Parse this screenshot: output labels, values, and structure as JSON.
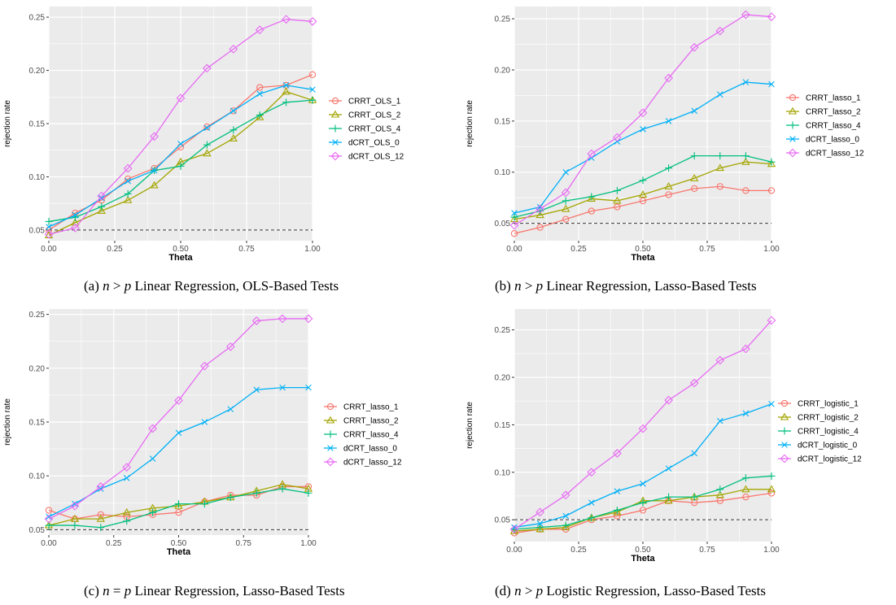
{
  "colors": {
    "panel_bg": "#EBEBEB",
    "grid": "#FFFFFF",
    "series": [
      "#F8766D",
      "#A3A500",
      "#00BF7D",
      "#00B0F6",
      "#E76BF3"
    ],
    "reference_line": "#333333"
  },
  "chart_data": [
    {
      "type": "line",
      "caption": {
        "label": "(a)",
        "n": "n",
        "rel": ">",
        "p": "p",
        "text": "Linear Regression, OLS-Based Tests"
      },
      "xlabel": "Theta",
      "ylabel": "rejection rate",
      "xlim": [
        0,
        1
      ],
      "ylim": [
        0.04,
        0.26
      ],
      "xticks": [
        0,
        0.25,
        0.5,
        0.75,
        1.0
      ],
      "xtick_labels": [
        "0.00",
        "0.25",
        "0.50",
        "0.75",
        "1.00"
      ],
      "yticks": [
        0.05,
        0.1,
        0.15,
        0.2,
        0.25
      ],
      "ytick_labels": [
        "0.05",
        "0.10",
        "0.15",
        "0.20",
        "0.25"
      ],
      "reference_line": 0.05,
      "legend_position": "right",
      "grid": true,
      "x": [
        0,
        0.1,
        0.2,
        0.3,
        0.4,
        0.5,
        0.6,
        0.7,
        0.8,
        0.9,
        1.0
      ],
      "series": [
        {
          "name": "CRRT_OLS_1",
          "marker": "circle",
          "values": [
            0.05,
            0.066,
            0.078,
            0.098,
            0.108,
            0.128,
            0.147,
            0.162,
            0.184,
            0.186,
            0.196
          ]
        },
        {
          "name": "CRRT_OLS_2",
          "marker": "triangle",
          "values": [
            0.045,
            0.057,
            0.068,
            0.078,
            0.092,
            0.114,
            0.122,
            0.136,
            0.156,
            0.18,
            0.172
          ]
        },
        {
          "name": "CRRT_OLS_4",
          "marker": "plus",
          "values": [
            0.058,
            0.062,
            0.072,
            0.084,
            0.106,
            0.11,
            0.13,
            0.144,
            0.158,
            0.17,
            0.172
          ]
        },
        {
          "name": "dCRT_OLS_0",
          "marker": "x",
          "values": [
            0.053,
            0.064,
            0.08,
            0.096,
            0.106,
            0.131,
            0.146,
            0.162,
            0.178,
            0.186,
            0.182
          ]
        },
        {
          "name": "dCRT_OLS_12",
          "marker": "diamond",
          "values": [
            0.046,
            0.052,
            0.082,
            0.108,
            0.138,
            0.174,
            0.202,
            0.22,
            0.238,
            0.248,
            0.246
          ]
        }
      ]
    },
    {
      "type": "line",
      "caption": {
        "label": "(b)",
        "n": "n",
        "rel": ">",
        "p": "p",
        "text": "Linear Regression, Lasso-Based Tests"
      },
      "xlabel": "Theta",
      "ylabel": "rejection rate",
      "xlim": [
        0,
        1
      ],
      "ylim": [
        0.033,
        0.262
      ],
      "xticks": [
        0,
        0.25,
        0.5,
        0.75,
        1.0
      ],
      "xtick_labels": [
        "0.00",
        "0.25",
        "0.50",
        "0.75",
        "1.00"
      ],
      "yticks": [
        0.05,
        0.1,
        0.15,
        0.2,
        0.25
      ],
      "ytick_labels": [
        "0.05",
        "0.10",
        "0.15",
        "0.20",
        "0.25"
      ],
      "reference_line": 0.05,
      "legend_position": "right",
      "grid": true,
      "x": [
        0,
        0.1,
        0.2,
        0.3,
        0.4,
        0.5,
        0.6,
        0.7,
        0.8,
        0.9,
        1.0
      ],
      "series": [
        {
          "name": "CRRT_lasso_1",
          "marker": "circle",
          "values": [
            0.04,
            0.046,
            0.054,
            0.062,
            0.066,
            0.072,
            0.078,
            0.084,
            0.086,
            0.082,
            0.082
          ]
        },
        {
          "name": "CRRT_lasso_2",
          "marker": "triangle",
          "values": [
            0.054,
            0.058,
            0.064,
            0.074,
            0.072,
            0.078,
            0.086,
            0.094,
            0.104,
            0.11,
            0.108
          ]
        },
        {
          "name": "CRRT_lasso_4",
          "marker": "plus",
          "values": [
            0.056,
            0.062,
            0.072,
            0.076,
            0.082,
            0.092,
            0.104,
            0.116,
            0.116,
            0.116,
            0.11
          ]
        },
        {
          "name": "dCRT_lasso_0",
          "marker": "x",
          "values": [
            0.06,
            0.066,
            0.1,
            0.114,
            0.13,
            0.142,
            0.15,
            0.16,
            0.176,
            0.188,
            0.186
          ]
        },
        {
          "name": "dCRT_lasso_12",
          "marker": "diamond",
          "values": [
            0.048,
            0.064,
            0.08,
            0.118,
            0.134,
            0.158,
            0.192,
            0.222,
            0.238,
            0.254,
            0.252
          ]
        }
      ]
    },
    {
      "type": "line",
      "caption": {
        "label": "(c)",
        "n": "n",
        "rel": "=",
        "p": "p",
        "text": "Linear Regression, Lasso-Based Tests"
      },
      "xlabel": "Theta",
      "ylabel": "rejection rate",
      "xlim": [
        0,
        1
      ],
      "ylim": [
        0.045,
        0.255
      ],
      "xticks": [
        0,
        0.25,
        0.5,
        0.75,
        1.0
      ],
      "xtick_labels": [
        "0.00",
        "0.25",
        "0.50",
        "0.75",
        "1.00"
      ],
      "yticks": [
        0.05,
        0.1,
        0.15,
        0.2,
        0.25
      ],
      "ytick_labels": [
        "0.05",
        "0.10",
        "0.15",
        "0.20",
        "0.25"
      ],
      "reference_line": 0.05,
      "legend_position": "right",
      "grid": true,
      "x": [
        0,
        0.1,
        0.2,
        0.3,
        0.4,
        0.5,
        0.6,
        0.7,
        0.8,
        0.9,
        1.0
      ],
      "series": [
        {
          "name": "CRRT_lasso_1",
          "marker": "circle",
          "values": [
            0.068,
            0.06,
            0.064,
            0.062,
            0.064,
            0.066,
            0.076,
            0.082,
            0.082,
            0.09,
            0.09
          ]
        },
        {
          "name": "CRRT_lasso_2",
          "marker": "triangle",
          "values": [
            0.054,
            0.06,
            0.06,
            0.066,
            0.07,
            0.072,
            0.076,
            0.08,
            0.086,
            0.092,
            0.088
          ]
        },
        {
          "name": "CRRT_lasso_4",
          "marker": "plus",
          "values": [
            0.054,
            0.054,
            0.052,
            0.058,
            0.066,
            0.074,
            0.074,
            0.08,
            0.084,
            0.088,
            0.084
          ]
        },
        {
          "name": "dCRT_lasso_0",
          "marker": "x",
          "values": [
            0.062,
            0.074,
            0.088,
            0.098,
            0.116,
            0.14,
            0.15,
            0.162,
            0.18,
            0.182,
            0.182
          ]
        },
        {
          "name": "dCRT_lasso_12",
          "marker": "diamond",
          "values": [
            0.06,
            0.072,
            0.09,
            0.108,
            0.144,
            0.17,
            0.202,
            0.22,
            0.244,
            0.246,
            0.246
          ]
        }
      ]
    },
    {
      "type": "line",
      "caption": {
        "label": "(d)",
        "n": "n",
        "rel": ">",
        "p": "p",
        "text": "Logistic Regression, Lasso-Based Tests"
      },
      "xlabel": "Theta",
      "ylabel": "rejection rate",
      "xlim": [
        0,
        1
      ],
      "ylim": [
        0.027,
        0.272
      ],
      "xticks": [
        0,
        0.25,
        0.5,
        0.75,
        1.0
      ],
      "xtick_labels": [
        "0.00",
        "0.25",
        "0.50",
        "0.75",
        "1.00"
      ],
      "yticks": [
        0.05,
        0.1,
        0.15,
        0.2,
        0.25
      ],
      "ytick_labels": [
        "0.05",
        "0.10",
        "0.15",
        "0.20",
        "0.25"
      ],
      "reference_line": 0.05,
      "legend_position": "right",
      "grid": true,
      "x": [
        0,
        0.1,
        0.2,
        0.3,
        0.4,
        0.5,
        0.6,
        0.7,
        0.8,
        0.9,
        1.0
      ],
      "series": [
        {
          "name": "CRRT_logistic_1",
          "marker": "circle",
          "values": [
            0.036,
            0.04,
            0.04,
            0.05,
            0.054,
            0.06,
            0.07,
            0.068,
            0.07,
            0.074,
            0.078
          ]
        },
        {
          "name": "CRRT_logistic_2",
          "marker": "triangle",
          "values": [
            0.038,
            0.04,
            0.042,
            0.052,
            0.058,
            0.07,
            0.07,
            0.074,
            0.076,
            0.082,
            0.082
          ]
        },
        {
          "name": "CRRT_logistic_4",
          "marker": "plus",
          "values": [
            0.04,
            0.042,
            0.044,
            0.052,
            0.06,
            0.068,
            0.074,
            0.074,
            0.082,
            0.094,
            0.096
          ]
        },
        {
          "name": "dCRT_logistic_0",
          "marker": "x",
          "values": [
            0.042,
            0.046,
            0.054,
            0.068,
            0.08,
            0.088,
            0.104,
            0.12,
            0.154,
            0.162,
            0.172
          ]
        },
        {
          "name": "dCRT_logistic_12",
          "marker": "diamond",
          "values": [
            0.04,
            0.058,
            0.076,
            0.1,
            0.12,
            0.146,
            0.176,
            0.194,
            0.218,
            0.23,
            0.26
          ]
        }
      ]
    }
  ]
}
